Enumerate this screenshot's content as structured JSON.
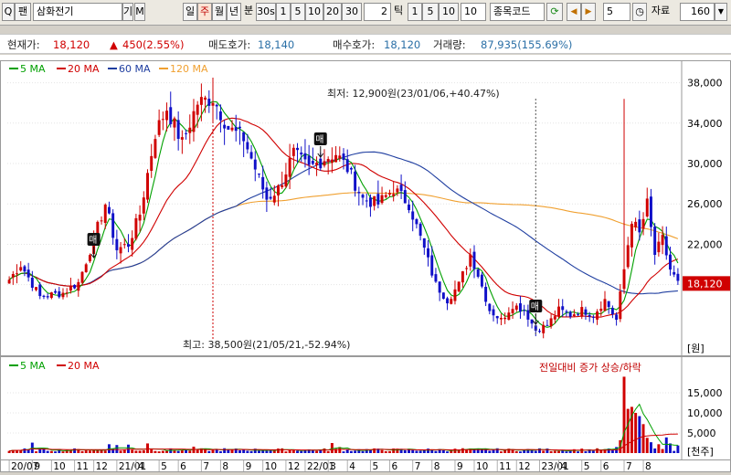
{
  "toolbar": {
    "search_icon": "magnifier-icon",
    "search_btn": "Q",
    "search_btn2": "팬",
    "stock_name": "삼화전기",
    "btn_gi": "기",
    "btn_m": "M",
    "periods": [
      "일",
      "주",
      "월",
      "년",
      "분",
      "30s",
      "1",
      "5",
      "10",
      "20",
      "30"
    ],
    "selected_period": "주",
    "tick_value": "2",
    "tick_label": "틱",
    "tick_opts": [
      "1",
      "5",
      "10"
    ],
    "tick_field": "10",
    "code_label": "종목코드",
    "refresh_icon": "refresh-icon",
    "prev_icon": "prev-arrow-icon",
    "next_icon": "next-arrow-icon",
    "count_field": "5",
    "data_icon": "clock-icon",
    "data_label": "자료",
    "data_count": "160",
    "dropdown_icon": "chevron-down-icon"
  },
  "quote": {
    "price_label": "현재가:",
    "price": "18,120",
    "change_icon": "up-triangle-icon",
    "change": "450(2.55%)",
    "ask_label": "매도호가:",
    "ask": "18,140",
    "bid_label": "매수호가:",
    "bid": "18,120",
    "volume_label": "거래량:",
    "volume": "87,935(155.69%)"
  },
  "colors": {
    "up": "#d00000",
    "down": "#1010c8",
    "ma5": "#00a000",
    "ma20": "#d00000",
    "ma60": "#1f3ea0",
    "ma120": "#f0a030",
    "volume_up": "#d00000",
    "volume_down": "#1010c8"
  },
  "chart_data": [
    {
      "type": "candlestick",
      "legend": [
        {
          "name": "5 MA",
          "color": "#00a000"
        },
        {
          "name": "20 MA",
          "color": "#d00000"
        },
        {
          "name": "60 MA",
          "color": "#1f3ea0"
        },
        {
          "name": "120 MA",
          "color": "#f0a030"
        }
      ],
      "y_ticks": [
        "38,000",
        "34,000",
        "30,000",
        "26,000",
        "22,000",
        "18,000"
      ],
      "ylim": [
        12000,
        39500
      ],
      "unit": "[원]",
      "current_price_label": "18,120",
      "annotations": {
        "low": "최저: 12,900원(23/01/06,+40.47%)",
        "high": "최고: 38,500원(21/05/21,-52.94%)",
        "buy_marker": "매"
      },
      "weekly_close_anchors": [
        [
          0,
          18500
        ],
        [
          3,
          20000
        ],
        [
          8,
          16800
        ],
        [
          14,
          17200
        ],
        [
          18,
          18200
        ],
        [
          22,
          22500
        ],
        [
          25,
          26000
        ],
        [
          28,
          21500
        ],
        [
          31,
          22000
        ],
        [
          34,
          25000
        ],
        [
          38,
          33000
        ],
        [
          41,
          35500
        ],
        [
          45,
          32000
        ],
        [
          49,
          36000
        ],
        [
          53,
          36500
        ],
        [
          57,
          33500
        ],
        [
          61,
          32500
        ],
        [
          64,
          29500
        ],
        [
          67,
          26500
        ],
        [
          70,
          27500
        ],
        [
          74,
          31000
        ],
        [
          78,
          29500
        ],
        [
          82,
          30500
        ],
        [
          85,
          31000
        ],
        [
          88,
          29500
        ],
        [
          92,
          26500
        ],
        [
          96,
          26000
        ],
        [
          100,
          27500
        ],
        [
          104,
          26000
        ],
        [
          108,
          21500
        ],
        [
          111,
          18000
        ],
        [
          114,
          16500
        ],
        [
          117,
          18000
        ],
        [
          120,
          21000
        ],
        [
          122,
          19000
        ],
        [
          125,
          15500
        ],
        [
          128,
          14500
        ],
        [
          131,
          16000
        ],
        [
          134,
          15500
        ],
        [
          137,
          13500
        ],
        [
          140,
          14000
        ],
        [
          143,
          15500
        ],
        [
          146,
          15000
        ],
        [
          149,
          15500
        ],
        [
          152,
          15000
        ],
        [
          155,
          16500
        ],
        [
          158,
          14500
        ],
        [
          160,
          19500
        ],
        [
          162,
          24500
        ],
        [
          164,
          23000
        ],
        [
          166,
          26000
        ],
        [
          168,
          21000
        ],
        [
          170,
          22500
        ],
        [
          172,
          19500
        ],
        [
          174,
          18120
        ]
      ],
      "x_ticks": [
        "20/07",
        "9",
        "10",
        "11",
        "12",
        "21/01",
        "4",
        "5",
        "6",
        "7",
        "8",
        "9",
        "10",
        "12",
        "22/01",
        "3",
        "4",
        "5",
        "6",
        "7",
        "8",
        "9",
        "10",
        "11",
        "12",
        "23/01",
        "4",
        "5",
        "6",
        "7",
        "8"
      ]
    },
    {
      "type": "bar",
      "legend": [
        {
          "name": "5 MA",
          "color": "#00a000"
        },
        {
          "name": "20 MA",
          "color": "#d00000"
        }
      ],
      "title": "전일대비 증가 상승/하락",
      "y_ticks": [
        "15,000",
        "10,000",
        "5,000"
      ],
      "ylim": [
        0,
        20000
      ],
      "unit": "[천주]",
      "base_volume": 800,
      "volume_spikes": [
        [
          6,
          2600
        ],
        [
          26,
          2200
        ],
        [
          28,
          2000
        ],
        [
          31,
          2100
        ],
        [
          36,
          2400
        ],
        [
          48,
          1600
        ],
        [
          56,
          1200
        ],
        [
          84,
          2500
        ],
        [
          86,
          1500
        ],
        [
          118,
          1200
        ],
        [
          130,
          1100
        ],
        [
          158,
          1500
        ],
        [
          159,
          3200
        ],
        [
          160,
          19000
        ],
        [
          161,
          11000
        ],
        [
          162,
          11500
        ],
        [
          163,
          10000
        ],
        [
          164,
          9200
        ],
        [
          165,
          7200
        ],
        [
          166,
          3800
        ],
        [
          167,
          2700
        ],
        [
          169,
          2200
        ],
        [
          171,
          3900
        ],
        [
          172,
          2400
        ],
        [
          174,
          1900
        ]
      ]
    }
  ]
}
